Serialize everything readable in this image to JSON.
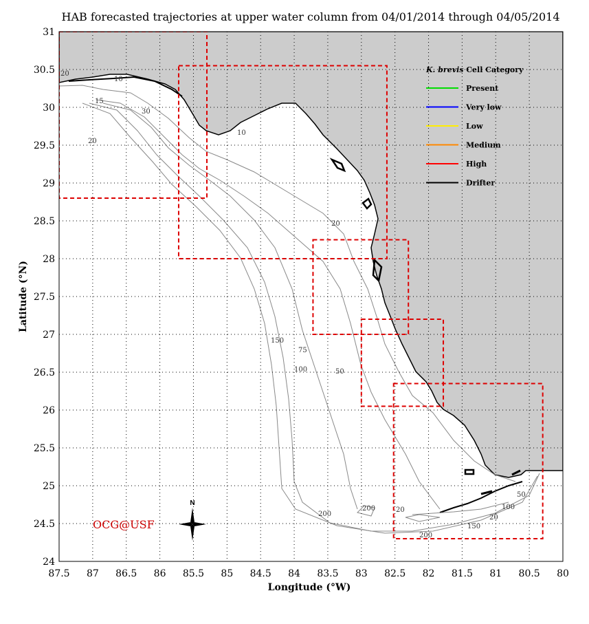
{
  "title": "HAB forecasted trajectories at upper water column from 04/01/2014 through 04/05/2014",
  "credit": "OCG@USF",
  "compass_label": "N",
  "axes": {
    "xlabel": "Longitude (°W)",
    "ylabel": "Latitude (°N)",
    "xlim": [
      87.5,
      80
    ],
    "ylim": [
      24,
      31
    ],
    "xticks": [
      "87.5",
      "87",
      "86.5",
      "86",
      "85.5",
      "85",
      "84.5",
      "84",
      "83.5",
      "83",
      "82.5",
      "82",
      "81.5",
      "81",
      "80.5",
      "80"
    ],
    "yticks": [
      "31",
      "30.5",
      "30",
      "29.5",
      "29",
      "28.5",
      "28",
      "27.5",
      "27",
      "26.5",
      "26",
      "25.5",
      "25",
      "24.5",
      "24"
    ],
    "grid": "dotted"
  },
  "legend": {
    "title_italic": "K. brevis",
    "title_rest": " Cell Category",
    "items": [
      {
        "label": "Present",
        "color": "#00dd00"
      },
      {
        "label": "Very low",
        "color": "#0000ff"
      },
      {
        "label": "Low",
        "color": "#ffee00"
      },
      {
        "label": "Medium",
        "color": "#ff8800"
      },
      {
        "label": "High",
        "color": "#ff0000"
      },
      {
        "label": "Drifter",
        "color": "#000000"
      }
    ]
  },
  "contour_labels": [
    "20",
    "10",
    "15",
    "20",
    "30",
    "20",
    "75",
    "50",
    "100",
    "150",
    "200",
    "200",
    "20",
    "50",
    "100",
    "150",
    "200",
    "20",
    "10"
  ],
  "colors": {
    "land": "#cccccc",
    "box": "#dd0000",
    "contour": "#888888"
  },
  "forecast_boxes": [
    {
      "lon_w": 87.5,
      "lon_e": 85.3,
      "lat_s": 28.8,
      "lat_n": 31.0
    },
    {
      "lon_w": 85.72,
      "lon_e": 82.62,
      "lat_s": 28.0,
      "lat_n": 30.55
    },
    {
      "lon_w": 83.72,
      "lon_e": 82.3,
      "lat_s": 27.0,
      "lat_n": 28.25
    },
    {
      "lon_w": 83.0,
      "lon_e": 81.78,
      "lat_s": 26.05,
      "lat_n": 27.2
    },
    {
      "lon_w": 82.52,
      "lon_e": 80.3,
      "lat_s": 24.3,
      "lat_n": 26.35
    }
  ]
}
